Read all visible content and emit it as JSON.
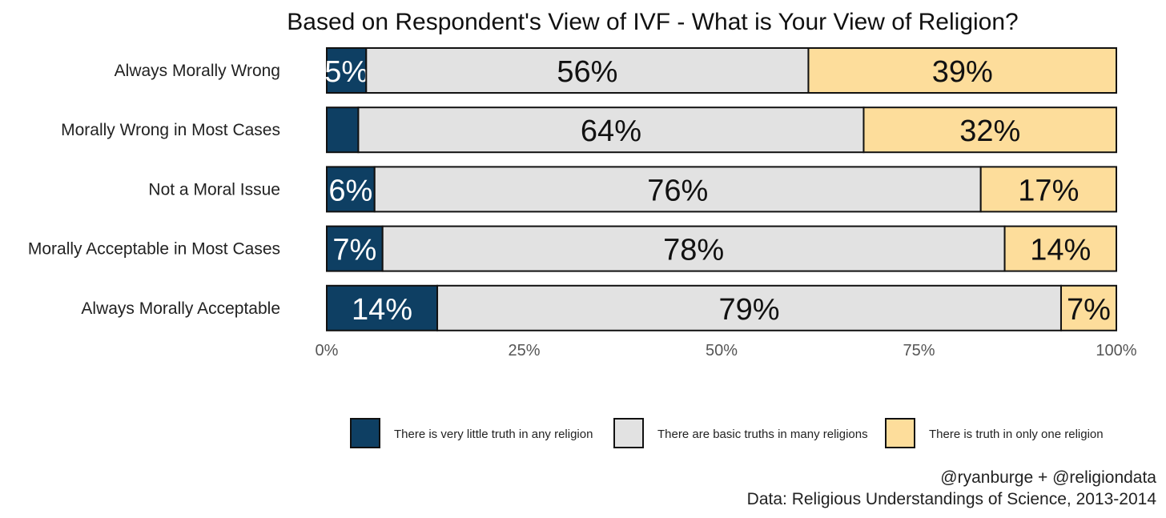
{
  "chart_data": {
    "type": "bar",
    "orientation": "horizontal",
    "stacked": true,
    "title": "Based on Respondent's View of IVF - What is Your View of Religion?",
    "categories": [
      "Always Morally Wrong",
      "Morally Wrong in Most Cases",
      "Not a Moral Issue",
      "Morally Acceptable in Most Cases",
      "Always Morally Acceptable"
    ],
    "series": [
      {
        "name": "There is very little truth in any religion",
        "color": "#0e3f63",
        "values": [
          5,
          4,
          6,
          7,
          14
        ],
        "labels": [
          "5%",
          "",
          "6%",
          "7%",
          "14%"
        ]
      },
      {
        "name": "There are basic truths in many religions",
        "color": "#e2e2e2",
        "values": [
          56,
          64,
          76,
          78,
          79
        ],
        "labels": [
          "56%",
          "64%",
          "76%",
          "78%",
          "79%"
        ]
      },
      {
        "name": "There is truth in only one religion",
        "color": "#fddd9b",
        "values": [
          39,
          32,
          17,
          14,
          7
        ],
        "labels": [
          "39%",
          "32%",
          "17%",
          "14%",
          "7%"
        ]
      }
    ],
    "xlim": [
      0,
      100
    ],
    "x_ticks": [
      0,
      25,
      50,
      75,
      100
    ],
    "x_tick_labels": [
      "0%",
      "25%",
      "50%",
      "75%",
      "100%"
    ],
    "xlabel": "",
    "ylabel": "",
    "grid": false,
    "legend_position": "bottom"
  },
  "caption": {
    "line1": "@ryanburge + @religiondata",
    "line2": "Data: Religious Understandings of Science, 2013-2014"
  }
}
